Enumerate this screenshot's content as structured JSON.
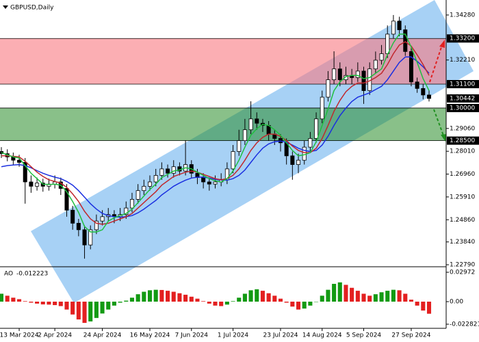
{
  "chart_data": {
    "type": "candlestick",
    "title": "GBPUSD,Daily",
    "categories": [
      null,
      null,
      null,
      "13 Mar 2024",
      null,
      null,
      null,
      null,
      null,
      "2 Apr 2024",
      null,
      null,
      null,
      null,
      null,
      null,
      null,
      "24 Apr 2024",
      null,
      null,
      null,
      null,
      null,
      null,
      null,
      "16 May 2024",
      null,
      null,
      null,
      null,
      null,
      null,
      "7 Jun 2024",
      null,
      null,
      null,
      null,
      null,
      null,
      "1 Jul 2024",
      null,
      null,
      null,
      null,
      null,
      null,
      null,
      "23 Jul 2024",
      null,
      null,
      null,
      null,
      null,
      null,
      "14 Aug 2024",
      null,
      null,
      null,
      null,
      null,
      null,
      "5 Sep 2024",
      null,
      null,
      null,
      null,
      null,
      null,
      null,
      "27 Sep 2024",
      null,
      null,
      null
    ],
    "open": [
      1.28,
      1.279,
      1.2775,
      1.276,
      1.275,
      1.266,
      1.264,
      1.2655,
      1.264,
      1.265,
      1.266,
      1.263,
      1.253,
      1.247,
      1.244,
      1.237,
      1.244,
      1.248,
      1.25,
      1.251,
      1.25,
      1.251,
      1.254,
      1.258,
      1.262,
      1.264,
      1.266,
      1.269,
      1.272,
      1.27,
      1.273,
      1.271,
      1.274,
      1.27,
      1.268,
      1.266,
      1.265,
      1.266,
      1.267,
      1.272,
      1.28,
      1.285,
      1.29,
      1.295,
      1.293,
      1.292,
      1.288,
      1.286,
      1.284,
      1.278,
      1.274,
      1.276,
      1.282,
      1.286,
      1.295,
      1.305,
      1.313,
      1.318,
      1.313,
      1.315,
      1.314,
      1.317,
      1.308,
      1.318,
      1.322,
      1.325,
      1.334,
      1.34,
      1.336,
      1.326,
      1.312,
      1.309,
      1.306
    ],
    "high": [
      1.282,
      1.281,
      1.2795,
      1.2785,
      1.277,
      1.269,
      1.268,
      1.2675,
      1.2675,
      1.269,
      1.268,
      1.265,
      1.255,
      1.249,
      1.246,
      1.246,
      1.251,
      1.253,
      1.254,
      1.253,
      1.254,
      1.257,
      1.261,
      1.265,
      1.267,
      1.269,
      1.272,
      1.275,
      1.274,
      1.276,
      1.275,
      1.2852,
      1.276,
      1.272,
      1.27,
      1.268,
      1.269,
      1.27,
      1.275,
      1.283,
      1.29,
      1.295,
      1.3031,
      1.298,
      1.295,
      1.294,
      1.29,
      1.288,
      1.286,
      1.28,
      1.279,
      1.285,
      1.289,
      1.298,
      1.308,
      1.317,
      1.3261,
      1.321,
      1.319,
      1.318,
      1.321,
      1.319,
      1.321,
      1.326,
      1.329,
      1.338,
      1.3428,
      1.342,
      1.338,
      1.328,
      1.314,
      1.311,
      1.308
    ],
    "low": [
      1.277,
      1.2755,
      1.274,
      1.273,
      1.256,
      1.261,
      1.262,
      1.2615,
      1.262,
      1.263,
      1.26,
      1.25,
      1.244,
      1.241,
      1.2307,
      1.235,
      1.242,
      1.246,
      1.248,
      1.247,
      1.248,
      1.249,
      1.252,
      1.256,
      1.26,
      1.262,
      1.264,
      1.267,
      1.268,
      1.268,
      1.269,
      1.269,
      1.268,
      1.265,
      1.263,
      1.262,
      1.263,
      1.264,
      1.265,
      1.27,
      1.278,
      1.283,
      1.288,
      1.29,
      1.289,
      1.285,
      1.283,
      1.28,
      1.274,
      1.267,
      1.27,
      1.274,
      1.28,
      1.284,
      1.293,
      1.303,
      1.311,
      1.31,
      1.311,
      1.311,
      1.312,
      1.3019,
      1.306,
      1.316,
      1.32,
      1.323,
      1.332,
      1.333,
      1.324,
      1.31,
      1.307,
      1.304,
      1.303
    ],
    "close": [
      1.279,
      1.2775,
      1.276,
      1.275,
      1.266,
      1.264,
      1.2655,
      1.264,
      1.265,
      1.266,
      1.263,
      1.253,
      1.247,
      1.244,
      1.237,
      1.244,
      1.248,
      1.25,
      1.251,
      1.25,
      1.251,
      1.254,
      1.258,
      1.262,
      1.264,
      1.266,
      1.269,
      1.272,
      1.27,
      1.273,
      1.271,
      1.274,
      1.27,
      1.268,
      1.266,
      1.265,
      1.266,
      1.267,
      1.272,
      1.28,
      1.285,
      1.29,
      1.295,
      1.293,
      1.292,
      1.288,
      1.286,
      1.284,
      1.278,
      1.274,
      1.276,
      1.282,
      1.286,
      1.295,
      1.305,
      1.313,
      1.318,
      1.313,
      1.315,
      1.314,
      1.317,
      1.308,
      1.318,
      1.322,
      1.325,
      1.334,
      1.34,
      1.336,
      1.326,
      1.312,
      1.309,
      1.306,
      1.3044
    ],
    "overlays": [
      {
        "color": "#1a2fe0",
        "values": [
          1.273,
          1.2735,
          1.2738,
          1.274,
          1.2735,
          1.2725,
          1.2712,
          1.27,
          1.269,
          1.2682,
          1.2675,
          1.2662,
          1.2645,
          1.262,
          1.259,
          1.256,
          1.2535,
          1.2515,
          1.2505,
          1.25,
          1.2498,
          1.25,
          1.2505,
          1.2518,
          1.2535,
          1.2555,
          1.2575,
          1.26,
          1.262,
          1.264,
          1.2655,
          1.2668,
          1.2678,
          1.2682,
          1.2682,
          1.2678,
          1.2672,
          1.2668,
          1.2668,
          1.2675,
          1.269,
          1.2715,
          1.275,
          1.2785,
          1.2815,
          1.2835,
          1.2845,
          1.2848,
          1.2842,
          1.283,
          1.2815,
          1.2805,
          1.28,
          1.2805,
          1.283,
          1.287,
          1.292,
          1.2965,
          1.3,
          1.303,
          1.305,
          1.306,
          1.307,
          1.3085,
          1.31,
          1.313,
          1.317,
          1.321,
          1.3235,
          1.3235,
          1.3215,
          1.319,
          1.316
        ]
      },
      {
        "color": "#c0282d",
        "values": [
          1.278,
          1.278,
          1.2778,
          1.2775,
          1.2755,
          1.273,
          1.2705,
          1.2685,
          1.267,
          1.2662,
          1.2655,
          1.2635,
          1.2605,
          1.257,
          1.2525,
          1.249,
          1.247,
          1.2465,
          1.247,
          1.248,
          1.249,
          1.25,
          1.2515,
          1.254,
          1.2565,
          1.259,
          1.2615,
          1.2645,
          1.2665,
          1.2685,
          1.2695,
          1.2705,
          1.271,
          1.2705,
          1.2695,
          1.2685,
          1.2675,
          1.267,
          1.2675,
          1.269,
          1.272,
          1.276,
          1.2805,
          1.284,
          1.2865,
          1.288,
          1.288,
          1.287,
          1.285,
          1.2825,
          1.2805,
          1.2795,
          1.2795,
          1.2815,
          1.286,
          1.292,
          1.2985,
          1.3035,
          1.3075,
          1.31,
          1.3115,
          1.3115,
          1.3125,
          1.314,
          1.316,
          1.32,
          1.325,
          1.329,
          1.3305,
          1.3285,
          1.3245,
          1.32,
          1.315
        ]
      },
      {
        "color": "#1fbf3f",
        "values": [
          1.2795,
          1.2785,
          1.2775,
          1.277,
          1.2735,
          1.27,
          1.2675,
          1.265,
          1.2648,
          1.265,
          1.2645,
          1.2615,
          1.257,
          1.252,
          1.2455,
          1.243,
          1.243,
          1.244,
          1.248,
          1.2495,
          1.2505,
          1.2515,
          1.2535,
          1.2565,
          1.2595,
          1.2625,
          1.265,
          1.268,
          1.2695,
          1.271,
          1.2715,
          1.2725,
          1.272,
          1.2705,
          1.269,
          1.2675,
          1.2665,
          1.266,
          1.2675,
          1.271,
          1.276,
          1.282,
          1.2875,
          1.2905,
          1.2925,
          1.292,
          1.29,
          1.2875,
          1.284,
          1.2805,
          1.278,
          1.2785,
          1.2795,
          1.2845,
          1.292,
          1.2995,
          1.308,
          1.312,
          1.3145,
          1.315,
          1.315,
          1.3135,
          1.314,
          1.316,
          1.318,
          1.3245,
          1.33,
          1.334,
          1.334,
          1.328,
          1.321,
          1.3135,
          1.308
        ]
      }
    ],
    "zones": [
      {
        "from": 1.311,
        "to": 1.332,
        "color": "rgba(248,120,128,0.6)"
      },
      {
        "from": 1.285,
        "to": 1.3,
        "color": "rgba(40,140,40,0.55)"
      }
    ],
    "levels": [
      {
        "value": 1.332,
        "label": "1.33200"
      },
      {
        "value": 1.311,
        "label": "1.31100"
      },
      {
        "value": 1.3,
        "label": "1.30000"
      },
      {
        "value": 1.285,
        "label": "1.28500"
      }
    ],
    "last_price": 1.30442,
    "ylim": [
      1.2276,
      1.3497
    ],
    "yticks": [
      {
        "value": 1.3428,
        "label": "1.34280"
      },
      {
        "value": 1.3221,
        "label": "1.32210"
      },
      {
        "value": 1.2906,
        "label": "1.29060"
      },
      {
        "value": 1.2801,
        "label": "1.28010"
      },
      {
        "value": 1.2696,
        "label": "1.26960"
      },
      {
        "value": 1.2591,
        "label": "1.25910"
      },
      {
        "value": 1.2486,
        "label": "1.24860"
      },
      {
        "value": 1.2384,
        "label": "1.23840"
      },
      {
        "value": 1.2279,
        "label": "1.22790"
      }
    ],
    "ao": {
      "type": "bar",
      "name": "AO",
      "up_color": "#139a13",
      "down_color": "#e32020",
      "values": [
        0.008,
        0.006,
        0.004,
        0.0025,
        0.0005,
        -0.001,
        -0.002,
        -0.0028,
        -0.003,
        -0.0035,
        -0.0045,
        -0.008,
        -0.013,
        -0.018,
        -0.0215,
        -0.02,
        -0.0165,
        -0.012,
        -0.008,
        -0.004,
        -0.001,
        0.001,
        0.004,
        0.0075,
        0.01,
        0.0115,
        0.012,
        0.0118,
        0.011,
        0.01,
        0.0085,
        0.007,
        0.005,
        0.003,
        0.0005,
        -0.002,
        -0.004,
        -0.0045,
        -0.003,
        0.0005,
        0.004,
        0.008,
        0.0115,
        0.0125,
        0.011,
        0.0085,
        0.006,
        0.003,
        -0.001,
        -0.005,
        -0.008,
        -0.007,
        -0.004,
        0.0,
        0.006,
        0.012,
        0.018,
        0.0195,
        0.017,
        0.014,
        0.011,
        0.008,
        0.006,
        0.0075,
        0.0095,
        0.011,
        0.012,
        0.0115,
        0.008,
        0.002,
        -0.004,
        -0.009,
        -0.012223
      ],
      "ylim": [
        -0.0256,
        0.0339
      ],
      "yticks": [
        0.02972,
        {
          "value": 0,
          "label": "0.00"
        },
        -0.022821
      ]
    }
  }
}
